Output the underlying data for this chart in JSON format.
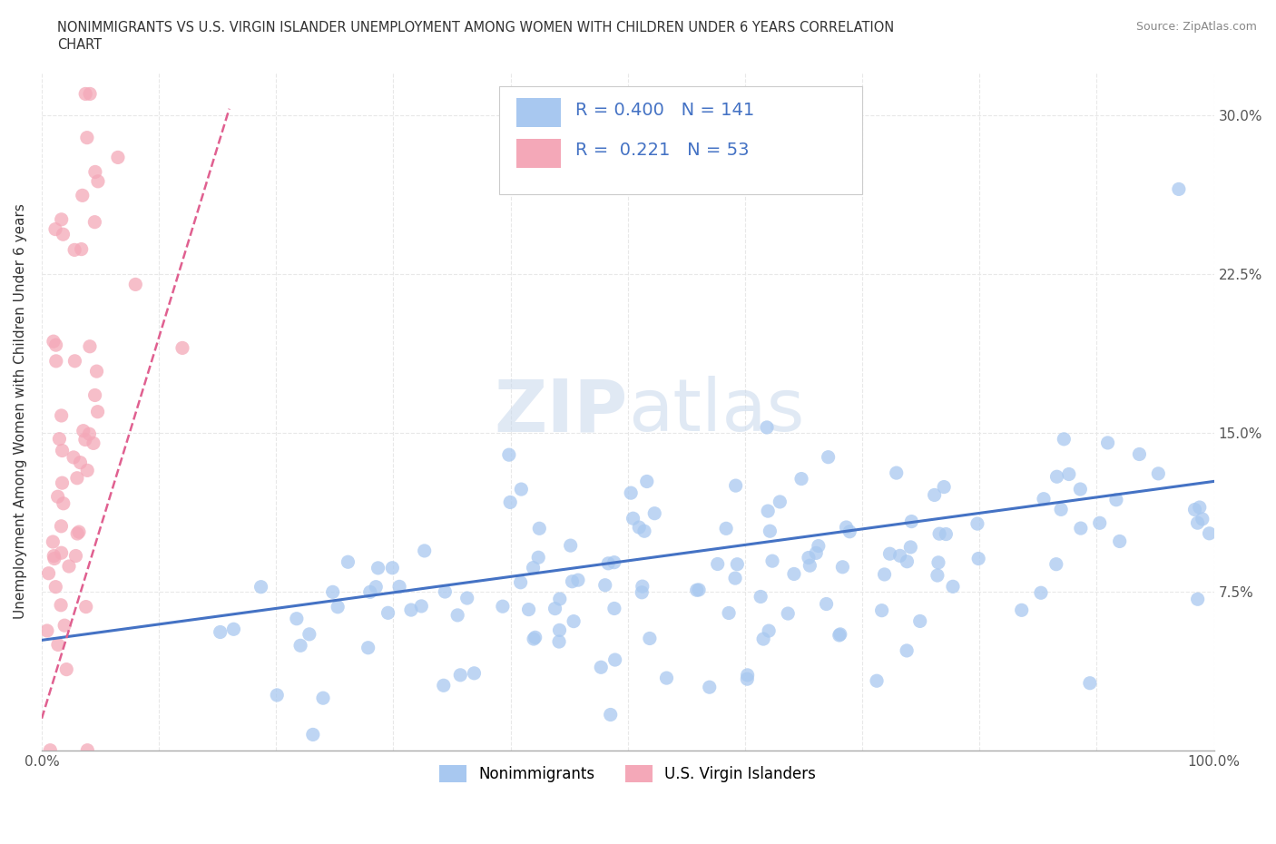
{
  "title_line1": "NONIMMIGRANTS VS U.S. VIRGIN ISLANDER UNEMPLOYMENT AMONG WOMEN WITH CHILDREN UNDER 6 YEARS CORRELATION",
  "title_line2": "CHART",
  "source": "Source: ZipAtlas.com",
  "ylabel": "Unemployment Among Women with Children Under 6 years",
  "xlim": [
    0,
    100
  ],
  "ylim": [
    0,
    32
  ],
  "yticks": [
    0,
    7.5,
    15.0,
    22.5,
    30.0
  ],
  "xticks": [
    0,
    10,
    20,
    30,
    40,
    50,
    60,
    70,
    80,
    90,
    100
  ],
  "ytick_labels_right": [
    "",
    "7.5%",
    "15.0%",
    "22.5%",
    "30.0%"
  ],
  "nonimmigrant_color": "#a8c8f0",
  "virgin_islander_color": "#f4a8b8",
  "trend_color_blue": "#4472c4",
  "trend_color_pink": "#e06090",
  "R_nonimmigrant": 0.4,
  "N_nonimmigrant": 141,
  "R_virgin": 0.221,
  "N_virgin": 53,
  "watermark": "ZIPAtlas",
  "background_color": "#ffffff",
  "grid_color": "#e8e8e8",
  "grid_style": "--"
}
